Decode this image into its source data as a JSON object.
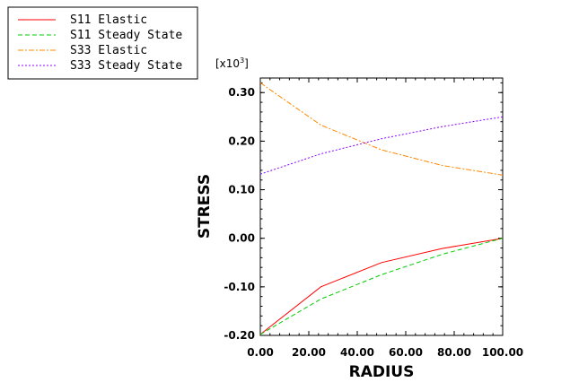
{
  "chart_data": {
    "type": "line",
    "xlabel": "RADIUS",
    "ylabel": "STRESS",
    "y_scale_label": "[x10",
    "y_scale_exponent": "3",
    "y_scale_close": "]",
    "xlim": [
      0,
      100
    ],
    "ylim": [
      -0.2,
      0.33
    ],
    "x_ticks": [
      0,
      20,
      40,
      60,
      80,
      100
    ],
    "x_tick_labels": [
      "0.00",
      "20.00",
      "40.00",
      "60.00",
      "80.00",
      "100.00"
    ],
    "y_ticks": [
      -0.2,
      -0.1,
      0.0,
      0.1,
      0.2,
      0.3
    ],
    "y_tick_labels": [
      "-0.20",
      "-0.10",
      "0.00",
      "0.10",
      "0.20",
      "0.30"
    ],
    "grid": false,
    "legend_position": "top-left",
    "series": [
      {
        "name": "S11 Elastic",
        "color": "#ff0000",
        "dash": "",
        "x": [
          0,
          25,
          50,
          75,
          100
        ],
        "y": [
          -0.198,
          -0.1,
          -0.05,
          -0.021,
          0.0
        ]
      },
      {
        "name": "S11 Steady State",
        "color": "#00cc00",
        "dash": "5,3",
        "x": [
          0,
          25,
          50,
          75,
          100
        ],
        "y": [
          -0.198,
          -0.125,
          -0.075,
          -0.033,
          0.0
        ]
      },
      {
        "name": "S33 Elastic",
        "color": "#ff8800",
        "dash": "6,2,2,2",
        "x": [
          0,
          25,
          50,
          75,
          100
        ],
        "y": [
          0.32,
          0.233,
          0.182,
          0.15,
          0.13
        ]
      },
      {
        "name": "S33 Steady State",
        "color": "#8800ff",
        "dash": "2,2",
        "x": [
          0,
          25,
          50,
          75,
          100
        ],
        "y": [
          0.132,
          0.174,
          0.205,
          0.23,
          0.25
        ]
      }
    ]
  }
}
